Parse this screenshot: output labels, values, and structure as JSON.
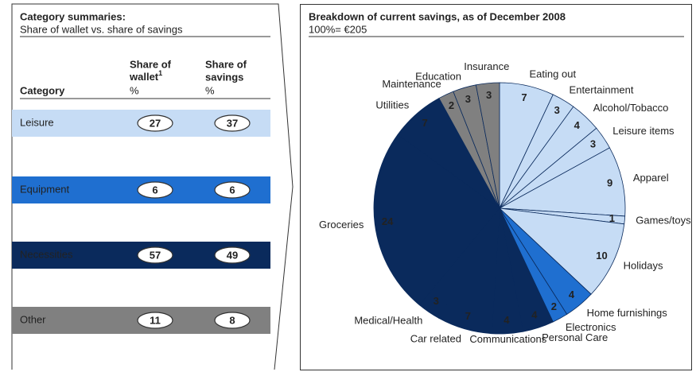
{
  "table": {
    "title": "Category summaries:",
    "subtitle": "Share of wallet vs. share of savings",
    "category_header": "Category",
    "wallet_header": {
      "line1": "Share of",
      "line2": "wallet",
      "note": "1",
      "unit": "%"
    },
    "savings_header": {
      "line1": "Share of",
      "line2": "savings",
      "unit": "%"
    },
    "rows": [
      {
        "label": "Leisure",
        "wallet": 27,
        "savings": 37,
        "color": "#c6dcf5",
        "text_color": "#0a2a5c"
      },
      {
        "label": "Equipment",
        "wallet": 6,
        "savings": 6,
        "color": "#1f6fd0",
        "text_color": "#ffffff"
      },
      {
        "label": "Necessities",
        "wallet": 57,
        "savings": 49,
        "color": "#0a2a5c",
        "text_color": "#ffffff"
      },
      {
        "label": "Other",
        "wallet": 11,
        "savings": 8,
        "color": "#808080",
        "text_color": "#ffffff"
      }
    ]
  },
  "chart_data": {
    "type": "pie",
    "title": "Breakdown of current savings, as of December 2008",
    "subtitle": "100%= €205",
    "categories": [
      "Eating out",
      "Entertainment",
      "Alcohol/Tobacco",
      "Leisure items",
      "Apparel",
      "Games/toys",
      "Holidays",
      "Home furnishings",
      "Electronics",
      "Personal Care",
      "Communications",
      "Car related",
      "Medical/Health",
      "Groceries",
      "Utilities",
      "Maintenance",
      "Education",
      "Insurance"
    ],
    "values": [
      7,
      3,
      4,
      3,
      9,
      1,
      10,
      4,
      2,
      4,
      4,
      7,
      3,
      24,
      7,
      2,
      3,
      3
    ],
    "colors": [
      "#c6dcf5",
      "#c6dcf5",
      "#c6dcf5",
      "#c6dcf5",
      "#c6dcf5",
      "#c6dcf5",
      "#c6dcf5",
      "#1f6fd0",
      "#1f6fd0",
      "#0a2a5c",
      "#0a2a5c",
      "#0a2a5c",
      "#0a2a5c",
      "#0a2a5c",
      "#0a2a5c",
      "#808080",
      "#808080",
      "#808080"
    ]
  }
}
